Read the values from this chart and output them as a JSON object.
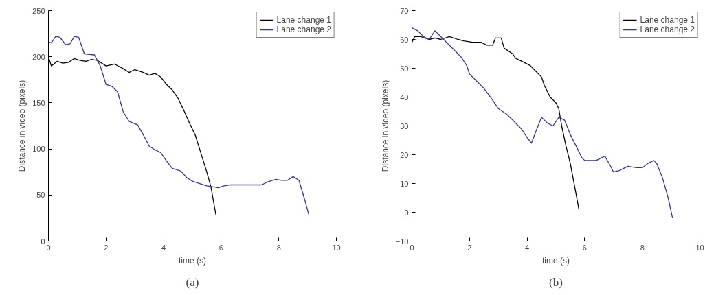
{
  "chart_data": [
    {
      "type": "line",
      "xlabel": "time (s)",
      "ylabel": "Distance in video (pixels)",
      "xlim": [
        0,
        10
      ],
      "ylim": [
        0,
        250
      ],
      "xticks": [
        0,
        2,
        4,
        6,
        8,
        10
      ],
      "yticks": [
        0,
        50,
        100,
        150,
        200,
        250
      ],
      "grid": false,
      "legend": "top right",
      "annotations": [
        "(a)"
      ],
      "series": [
        {
          "name": "Lane change 1",
          "color": "#000000",
          "x": [
            0,
            0.1,
            0.3,
            0.5,
            0.7,
            0.9,
            1.1,
            1.3,
            1.5,
            1.7,
            2.0,
            2.3,
            2.6,
            2.8,
            3.0,
            3.3,
            3.5,
            3.7,
            3.9,
            4.1,
            4.3,
            4.5,
            4.7,
            4.9,
            5.1,
            5.3,
            5.5,
            5.65,
            5.75,
            5.82
          ],
          "values": [
            200,
            190,
            195,
            193,
            194,
            198,
            196,
            195,
            197,
            196,
            190,
            192,
            187,
            183,
            186,
            183,
            180,
            182,
            178,
            170,
            164,
            155,
            142,
            128,
            115,
            95,
            75,
            58,
            40,
            28
          ]
        },
        {
          "name": "Lane change 2",
          "color": "#333399",
          "x": [
            0,
            0.1,
            0.25,
            0.4,
            0.6,
            0.75,
            0.9,
            1.05,
            1.25,
            1.6,
            1.8,
            2.0,
            2.2,
            2.4,
            2.6,
            2.8,
            3.1,
            3.3,
            3.5,
            3.7,
            3.9,
            4.1,
            4.3,
            4.6,
            4.8,
            5.0,
            5.2,
            5.5,
            5.7,
            5.9,
            6.1,
            6.3,
            7.0,
            7.4,
            7.6,
            7.9,
            8.1,
            8.3,
            8.5,
            8.7,
            8.9,
            9.05
          ],
          "values": [
            216,
            215,
            222,
            221,
            213,
            214,
            222,
            221,
            203,
            202,
            190,
            170,
            168,
            162,
            140,
            130,
            126,
            115,
            103,
            99,
            96,
            87,
            79,
            76,
            69,
            65,
            63,
            60,
            59,
            58,
            60,
            61,
            61,
            61,
            64,
            67,
            66,
            66,
            70,
            66,
            45,
            28
          ]
        }
      ]
    },
    {
      "type": "line",
      "xlabel": "time (s)",
      "ylabel": "Distance in video (pixels)",
      "xlim": [
        0,
        10
      ],
      "ylim": [
        -10,
        70
      ],
      "xticks": [
        0,
        2,
        4,
        6,
        8,
        10
      ],
      "yticks": [
        -10,
        0,
        10,
        20,
        30,
        40,
        50,
        60,
        70
      ],
      "grid": false,
      "legend": "top right",
      "annotations": [
        "(b)"
      ],
      "series": [
        {
          "name": "Lane change 1",
          "color": "#000000",
          "x": [
            0,
            0.1,
            0.3,
            0.6,
            0.8,
            1.0,
            1.3,
            1.6,
            1.8,
            2.1,
            2.4,
            2.6,
            2.8,
            2.9,
            3.1,
            3.2,
            3.5,
            3.6,
            3.9,
            4.1,
            4.3,
            4.5,
            4.6,
            4.7,
            4.8,
            5.0,
            5.1,
            5.2,
            5.35,
            5.5,
            5.65,
            5.8
          ],
          "values": [
            59,
            61,
            61,
            60,
            60.5,
            60,
            61,
            60,
            59.5,
            59,
            59,
            58,
            58,
            60.5,
            60.5,
            57,
            55,
            53.5,
            52,
            51,
            49,
            47,
            44,
            42,
            40,
            38,
            36,
            30,
            23,
            17,
            9,
            1
          ]
        },
        {
          "name": "Lane change 2",
          "color": "#333399",
          "x": [
            0,
            0.2,
            0.4,
            0.6,
            0.8,
            1.0,
            1.2,
            1.5,
            1.7,
            1.9,
            2.0,
            2.2,
            2.5,
            2.8,
            3.0,
            3.3,
            3.6,
            3.8,
            4.0,
            4.15,
            4.3,
            4.5,
            4.7,
            4.9,
            5.1,
            5.3,
            5.5,
            5.7,
            5.9,
            6.0,
            6.4,
            6.7,
            6.9,
            7.0,
            7.2,
            7.5,
            7.8,
            8.0,
            8.2,
            8.4,
            8.5,
            8.7,
            8.9,
            9.05
          ],
          "values": [
            64,
            63,
            61,
            60,
            63,
            61,
            59,
            56,
            54,
            51,
            48,
            46,
            43,
            39,
            36,
            34,
            31,
            29,
            26,
            24,
            28,
            33,
            31,
            30,
            33,
            32,
            27,
            23,
            19,
            18,
            18,
            19.5,
            16,
            14,
            14.5,
            16,
            15.5,
            15.5,
            17,
            18,
            17,
            12,
            5,
            -2
          ]
        }
      ]
    }
  ]
}
